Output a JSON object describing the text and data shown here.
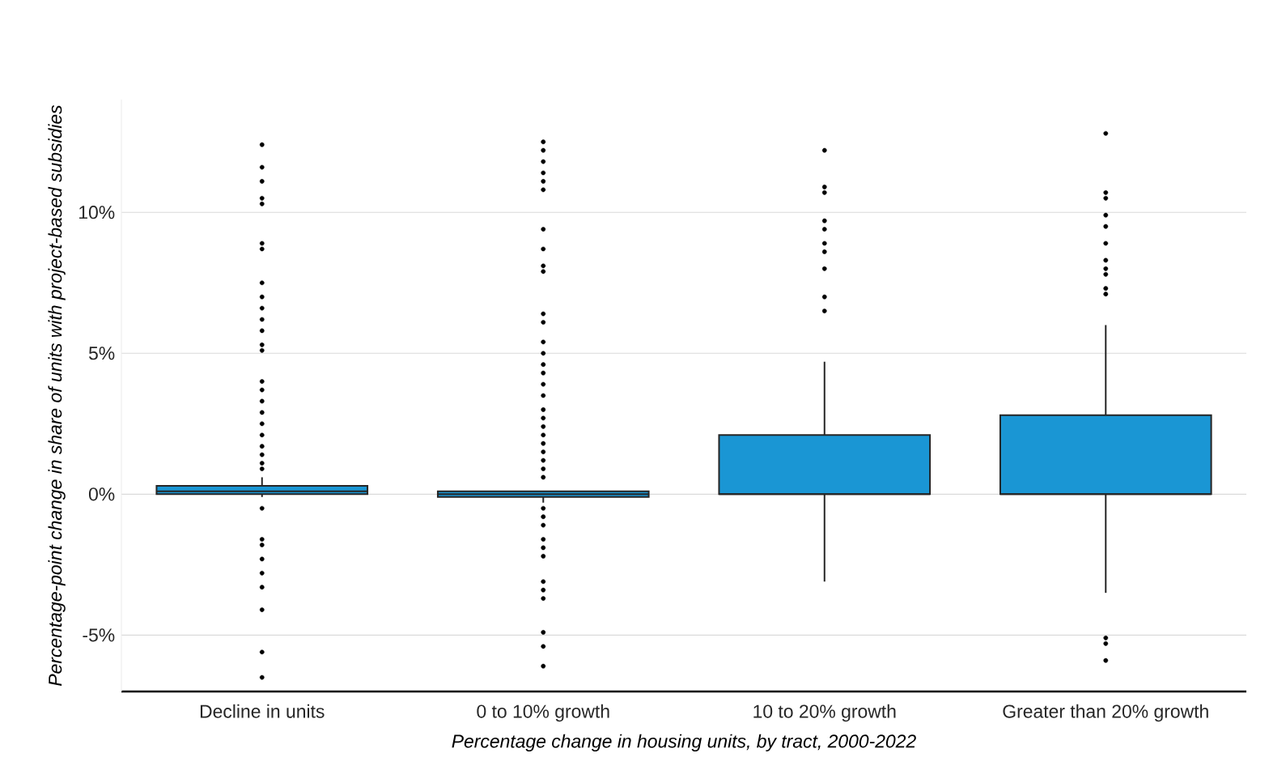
{
  "chart_data": {
    "type": "box",
    "xlabel": "Percentage change in housing units, by tract, 2000-2022",
    "ylabel": "Percentage-point change in share of units with project-based subsidies",
    "categories": [
      "Decline in units",
      "0 to 10% growth",
      "10 to 20% growth",
      "Greater than 20% growth"
    ],
    "color": "#1a96d4",
    "marker": "circle",
    "grid": "y",
    "ylim": [
      -7,
      14
    ],
    "yticks": [
      {
        "value": -5,
        "label": "-5%"
      },
      {
        "value": 0,
        "label": "0%"
      },
      {
        "value": 5,
        "label": "5%"
      },
      {
        "value": 10,
        "label": "10%"
      }
    ],
    "boxes": [
      {
        "low": -0.1,
        "q1": 0,
        "median": 0.1,
        "q3": 0.3,
        "high": 0.6,
        "outliers": [
          12.4,
          11.6,
          11.1,
          10.5,
          10.3,
          8.9,
          8.7,
          7.5,
          7.0,
          6.6,
          6.2,
          5.8,
          5.3,
          5.1,
          4.0,
          3.7,
          3.3,
          2.9,
          2.5,
          2.1,
          1.7,
          1.4,
          1.1,
          0.9,
          -0.5,
          -1.6,
          -1.8,
          -2.3,
          -2.8,
          -3.3,
          -4.1,
          -5.6,
          -6.5
        ]
      },
      {
        "low": -0.3,
        "q1": -0.1,
        "median": 0,
        "q3": 0.1,
        "high": 0.1,
        "outliers": [
          12.5,
          12.2,
          11.8,
          11.4,
          11.1,
          10.8,
          9.4,
          8.7,
          8.1,
          7.9,
          6.4,
          6.1,
          5.4,
          5.0,
          4.6,
          4.3,
          3.9,
          3.5,
          3.0,
          2.7,
          2.4,
          2.1,
          1.8,
          1.5,
          1.2,
          0.9,
          0.6,
          -0.5,
          -0.8,
          -1.1,
          -1.6,
          -1.9,
          -2.2,
          -3.1,
          -3.4,
          -3.7,
          -4.9,
          -5.4,
          -6.1
        ]
      },
      {
        "low": -3.1,
        "q1": 0,
        "median": 0,
        "q3": 2.1,
        "high": 4.7,
        "outliers": [
          12.2,
          10.9,
          10.7,
          9.7,
          9.4,
          8.9,
          8.6,
          8.0,
          7.0,
          6.5
        ]
      },
      {
        "low": -3.5,
        "q1": 0,
        "median": 0,
        "q3": 2.8,
        "high": 6.0,
        "outliers": [
          12.8,
          10.7,
          10.5,
          9.9,
          9.5,
          8.9,
          8.3,
          8.0,
          7.8,
          7.3,
          7.1,
          -5.1,
          -5.3,
          -5.9
        ]
      }
    ]
  }
}
